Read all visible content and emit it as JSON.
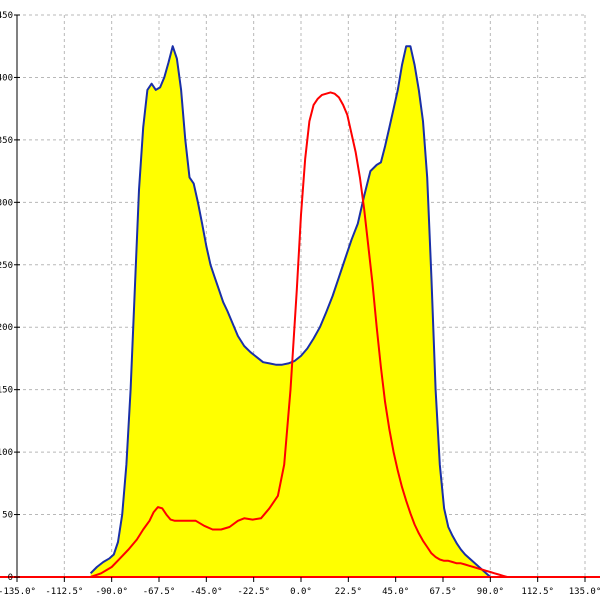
{
  "chart_data": {
    "type": "area",
    "title": "",
    "xlabel": "",
    "ylabel": "",
    "xlim": [
      -135,
      135
    ],
    "ylim": [
      0,
      450
    ],
    "grid": true,
    "x_ticks": [
      -135,
      -112.5,
      -90,
      -67.5,
      -45,
      -22.5,
      0,
      22.5,
      45,
      67.5,
      90,
      112.5,
      135
    ],
    "x_tick_labels": [
      "-135.0°",
      "-112.5°",
      "-90.0°",
      "-67.5°",
      "-45.0°",
      "-22.5°",
      "0.0°",
      "22.5°",
      "45.0°",
      "67.5°",
      "90.0°",
      "112.5°",
      "135.0°"
    ],
    "y_ticks": [
      0,
      50,
      100,
      150,
      200,
      250,
      300,
      350,
      400,
      450
    ],
    "y_tick_labels": [
      "0",
      "50",
      "100",
      "150",
      "200",
      "250",
      "300",
      "350",
      "400",
      "450"
    ],
    "series": [
      {
        "fill": "#ffff00",
        "stroke": "#1a2fa8",
        "x": [
          -100,
          -97,
          -94,
          -91,
          -89,
          -87,
          -85,
          -83,
          -81,
          -79,
          -77,
          -75,
          -73,
          -71,
          -69,
          -67,
          -65,
          -63,
          -61,
          -59,
          -57,
          -55,
          -53,
          -51,
          -49,
          -47,
          -45,
          -43,
          -41,
          -39,
          -37,
          -35,
          -33,
          -30,
          -27,
          -24,
          -21,
          -18,
          -15,
          -12,
          -9,
          -6,
          -3,
          0,
          3,
          6,
          9,
          12,
          15,
          18,
          21,
          24,
          27,
          30,
          33,
          36,
          38,
          40,
          42,
          44,
          46,
          48,
          50,
          52,
          54,
          56,
          58,
          60,
          62,
          64,
          66,
          68,
          70,
          72,
          74,
          76,
          78,
          80,
          82,
          84,
          86,
          88,
          90,
          92,
          94,
          96,
          98,
          100,
          102
        ],
        "values": [
          3,
          8,
          12,
          15,
          18,
          28,
          50,
          90,
          150,
          230,
          310,
          360,
          390,
          395,
          390,
          392,
          400,
          412,
          425,
          415,
          390,
          350,
          320,
          315,
          300,
          283,
          265,
          250,
          240,
          230,
          220,
          213,
          205,
          193,
          185,
          180,
          176,
          172,
          171,
          170,
          170,
          171,
          173,
          177,
          183,
          191,
          200,
          212,
          225,
          240,
          255,
          270,
          283,
          305,
          325,
          330,
          332,
          345,
          360,
          375,
          390,
          410,
          425,
          425,
          410,
          390,
          365,
          320,
          240,
          150,
          90,
          55,
          40,
          33,
          27,
          22,
          18,
          15,
          12,
          9,
          6,
          3,
          0,
          0,
          0,
          0,
          0,
          0,
          0
        ]
      },
      {
        "fill": "none",
        "stroke": "#ff0000",
        "x": [
          -100,
          -95,
          -90,
          -86,
          -82,
          -78,
          -75,
          -72,
          -70,
          -68,
          -66,
          -64,
          -62,
          -60,
          -57,
          -54,
          -50,
          -46,
          -42,
          -38,
          -34,
          -30,
          -27,
          -23,
          -19,
          -15,
          -11,
          -8,
          -5,
          -2,
          0,
          2,
          4,
          6,
          8,
          10,
          12,
          14,
          16,
          18,
          20,
          22,
          24,
          26,
          28,
          30,
          32,
          34,
          36,
          38,
          40,
          42,
          44,
          46,
          48,
          50,
          52,
          54,
          56,
          58,
          60,
          62,
          64,
          66,
          68,
          70,
          72,
          74,
          76,
          78,
          80,
          82,
          84,
          86,
          88,
          90,
          92,
          94,
          96,
          98,
          100,
          102
        ],
        "values": [
          0,
          3,
          8,
          15,
          22,
          30,
          38,
          45,
          52,
          56,
          55,
          50,
          46,
          45,
          45,
          45,
          45,
          41,
          38,
          38,
          40,
          45,
          47,
          46,
          47,
          55,
          65,
          90,
          150,
          230,
          290,
          335,
          365,
          378,
          383,
          386,
          387,
          388,
          387,
          384,
          378,
          370,
          355,
          340,
          320,
          295,
          265,
          235,
          200,
          168,
          140,
          118,
          100,
          85,
          72,
          61,
          51,
          42,
          35,
          29,
          24,
          19,
          16,
          14,
          13,
          13,
          12,
          11,
          11,
          10,
          9,
          8,
          7,
          6,
          5,
          4,
          3,
          2,
          1,
          0,
          0,
          0
        ]
      }
    ]
  }
}
